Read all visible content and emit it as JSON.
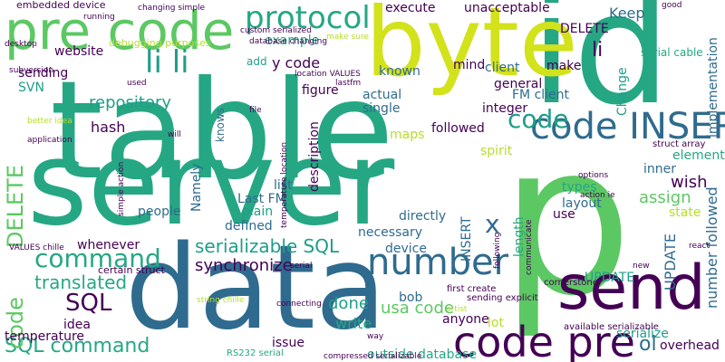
{
  "palette": {
    "purple": "#440154",
    "blue_dark": "#2f6b8e",
    "teal": "#26a784",
    "teal_mid": "#1f9e89",
    "green": "#5cc863",
    "lime": "#b5de2b",
    "yellow_green": "#d2e21b"
  },
  "words": [
    "table",
    "server",
    "data",
    "p",
    "id",
    "byte",
    "send",
    "pre code",
    "code pre",
    "number",
    "command",
    "code INSERT",
    "protocol",
    "li li",
    "code",
    "SQL command",
    "SQL",
    "DELETE",
    "code",
    "translated",
    "serializable SQL",
    "synchronize",
    "repository",
    "hash",
    "Keep",
    "li",
    "x",
    "wish",
    "assign",
    "UPDATE",
    "number followed",
    "usa code",
    "done",
    "write",
    "ol",
    "overhead",
    "issue",
    "outside database",
    "RS232 serial",
    "embedded device",
    "execute",
    "unacceptable",
    "example",
    "add",
    "y code",
    "known",
    "mind",
    "client",
    "make",
    "general",
    "FM client",
    "actual",
    "single",
    "integer",
    "figure",
    "description",
    "maps",
    "spirit",
    "followed",
    "Change",
    "implementation",
    "DELETE",
    "serial cable",
    "website",
    "sending",
    "SVN",
    "debugging purposes",
    "knows",
    "Namely",
    "people",
    "Last FM",
    "plain",
    "defined",
    "list",
    "necessary",
    "directly",
    "device",
    "INSERT",
    "length",
    "UPDATE",
    "types",
    "layout",
    "use",
    "state",
    "element",
    "inner",
    "serialize",
    "bob",
    "anyone",
    "lot",
    "idea",
    "temperature",
    "whenever",
    "certain struct",
    "struct array",
    "sending explicit",
    "first create",
    "cornerstone",
    "available serializable",
    "compressed serializable",
    "database changing",
    "custom serialized",
    "changing simple",
    "make sure",
    "location VALUES",
    "lastfm",
    "VALUES chille",
    "string chille",
    "connecting",
    "better idea",
    "application",
    "subversion",
    "options",
    "action ie",
    "good",
    "temperature location",
    "simple action",
    "following",
    "artist",
    "communicate",
    "serial",
    "new",
    "file",
    "will",
    "used",
    "desktop",
    "running",
    "way",
    "react"
  ]
}
